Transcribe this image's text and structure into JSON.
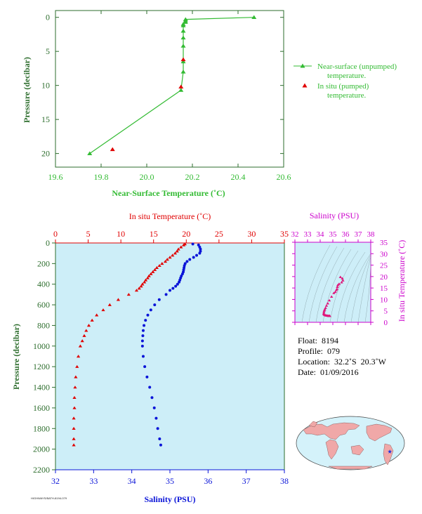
{
  "colors": {
    "surface_series": "#33bb33",
    "insitu_red": "#e00000",
    "salinity_blue": "#0a14d8",
    "ts_magenta": "#e0147a",
    "ts_axis": "#cc00cc",
    "axis_green": "#2e6e2e",
    "plot_bg": "#cdeef8",
    "map_ocean": "#d4f2fa",
    "map_land": "#f0a8a8"
  },
  "chart_data": [
    {
      "id": "near_surface",
      "type": "scatter",
      "xlabel": "Near-Surface Temperature (˚C)",
      "ylabel": "Pressure (decibar)",
      "xlim": [
        19.6,
        20.6
      ],
      "ylim": [
        22,
        -1
      ],
      "xticks": [
        "19.6",
        "19.8",
        "20.0",
        "20.2",
        "20.4",
        "20.6"
      ],
      "yticks": [
        "0",
        "5",
        "10",
        "15",
        "20"
      ],
      "grid": false,
      "legend_placement": "right",
      "series": [
        {
          "name": "Near-surface (unpumped) temperature.",
          "marker": "triangle",
          "line": true,
          "points": [
            [
              20.47,
              0.0
            ],
            [
              20.17,
              0.3
            ],
            [
              20.17,
              0.5
            ],
            [
              20.17,
              0.7
            ],
            [
              20.16,
              1.0
            ],
            [
              20.16,
              1.2
            ],
            [
              20.16,
              2.0
            ],
            [
              20.16,
              3.0
            ],
            [
              20.16,
              4.2
            ],
            [
              20.16,
              6.5
            ],
            [
              20.16,
              8.0
            ],
            [
              20.15,
              10.7
            ],
            [
              19.75,
              20.0
            ]
          ]
        },
        {
          "name": "In situ (pumped) temperature.",
          "marker": "triangle",
          "line": false,
          "points": [
            [
              20.16,
              6.2
            ],
            [
              20.15,
              10.2
            ],
            [
              19.85,
              19.4
            ]
          ]
        }
      ]
    },
    {
      "id": "profile",
      "type": "scatter",
      "ylabel": "Pressure (decibar)",
      "top_axis_label": "In situ Temperature (˚C)",
      "bottom_axis_label": "Salinity (PSU)",
      "temperature_range": [
        0,
        35
      ],
      "salinity_range": [
        32,
        38
      ],
      "ylim": [
        2200,
        0
      ],
      "temperature_ticks": [
        "0",
        "5",
        "10",
        "15",
        "20",
        "25",
        "30",
        "35"
      ],
      "salinity_ticks": [
        "32",
        "33",
        "34",
        "35",
        "36",
        "37",
        "38"
      ],
      "yticks": [
        "0",
        "200",
        "400",
        "600",
        "800",
        "1000",
        "1200",
        "1400",
        "1600",
        "1800",
        "2000",
        "2200"
      ],
      "temperature": {
        "pressure": [
          10,
          20,
          40,
          60,
          80,
          100,
          120,
          140,
          160,
          180,
          200,
          220,
          240,
          260,
          280,
          300,
          320,
          340,
          360,
          380,
          400,
          420,
          440,
          460,
          500,
          550,
          600,
          650,
          700,
          750,
          800,
          850,
          900,
          950,
          1000,
          1100,
          1200,
          1300,
          1400,
          1500,
          1600,
          1700,
          1800,
          1900,
          1960
        ],
        "values": [
          19.8,
          19.6,
          19.2,
          18.8,
          18.6,
          18.3,
          17.9,
          17.5,
          17.1,
          16.8,
          16.3,
          15.9,
          15.5,
          15.2,
          14.9,
          14.6,
          14.3,
          14.1,
          13.8,
          13.6,
          13.3,
          13.1,
          12.8,
          12.4,
          11.2,
          9.6,
          8.3,
          7.3,
          6.3,
          5.6,
          5.1,
          4.7,
          4.4,
          4.1,
          3.8,
          3.5,
          3.3,
          3.1,
          3.0,
          2.9,
          2.9,
          2.8,
          2.8,
          2.8,
          2.8
        ]
      },
      "salinity": {
        "pressure": [
          10,
          20,
          40,
          60,
          80,
          100,
          120,
          140,
          160,
          180,
          200,
          220,
          240,
          260,
          280,
          300,
          320,
          340,
          360,
          380,
          400,
          420,
          440,
          460,
          500,
          550,
          600,
          650,
          700,
          750,
          800,
          850,
          900,
          950,
          1000,
          1100,
          1200,
          1300,
          1400,
          1500,
          1600,
          1700,
          1800,
          1900,
          1960
        ],
        "values": [
          35.6,
          35.75,
          35.78,
          35.8,
          35.8,
          35.78,
          35.7,
          35.62,
          35.52,
          35.45,
          35.4,
          35.38,
          35.37,
          35.36,
          35.35,
          35.33,
          35.3,
          35.28,
          35.26,
          35.24,
          35.2,
          35.15,
          35.08,
          35.0,
          34.9,
          34.72,
          34.6,
          34.5,
          34.42,
          34.36,
          34.32,
          34.3,
          34.29,
          34.28,
          34.28,
          34.3,
          34.34,
          34.4,
          34.47,
          34.53,
          34.59,
          34.64,
          34.68,
          34.73,
          34.76
        ]
      }
    },
    {
      "id": "ts_diagram",
      "type": "scatter",
      "top_axis_label": "Salinity (PSU)",
      "right_axis_label": "In situ Temperature (˚C)",
      "xlim": [
        32,
        38
      ],
      "ylim": [
        0,
        35
      ],
      "xticks": [
        "32",
        "33",
        "34",
        "35",
        "36",
        "37",
        "38"
      ],
      "yticks": [
        "0",
        "5",
        "10",
        "15",
        "20",
        "25",
        "30",
        "35"
      ],
      "points": [
        [
          35.6,
          19.8
        ],
        [
          35.75,
          19.2
        ],
        [
          35.8,
          18.3
        ],
        [
          35.7,
          17.5
        ],
        [
          35.5,
          16.8
        ],
        [
          35.4,
          16.3
        ],
        [
          35.36,
          15.5
        ],
        [
          35.33,
          14.6
        ],
        [
          35.28,
          14.1
        ],
        [
          35.2,
          13.3
        ],
        [
          35.08,
          12.8
        ],
        [
          34.9,
          11.2
        ],
        [
          34.72,
          9.6
        ],
        [
          34.6,
          8.3
        ],
        [
          34.5,
          7.3
        ],
        [
          34.42,
          6.3
        ],
        [
          34.36,
          5.6
        ],
        [
          34.32,
          5.1
        ],
        [
          34.29,
          4.4
        ],
        [
          34.28,
          3.8
        ],
        [
          34.3,
          3.5
        ],
        [
          34.34,
          3.3
        ],
        [
          34.4,
          3.1
        ],
        [
          34.47,
          3.0
        ],
        [
          34.53,
          2.9
        ],
        [
          34.59,
          2.9
        ],
        [
          34.64,
          2.8
        ],
        [
          34.68,
          2.8
        ],
        [
          34.73,
          2.8
        ],
        [
          34.76,
          2.8
        ]
      ]
    }
  ],
  "float_info": {
    "float": "Float:  8194",
    "profile": "Profile:  079",
    "location": "Location:  32.2˚S  20.3˚W",
    "date": "Date:  01/09/2016"
  },
  "map": {
    "marker_icon": "star-icon",
    "longitude": -20.3,
    "latitude": -32.2
  },
  "footer_code": "HIGHWAYS/BATH-8194-079"
}
